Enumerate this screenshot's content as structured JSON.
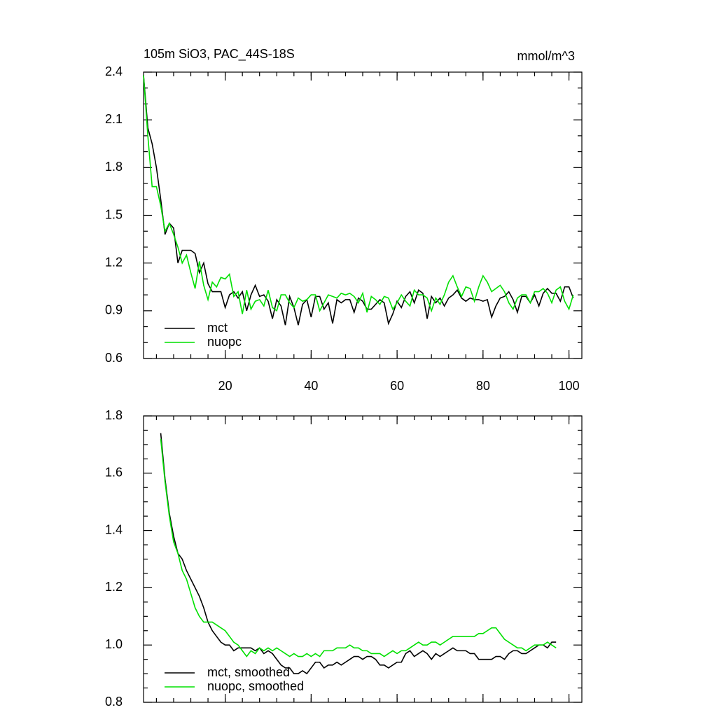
{
  "chart_data": [
    {
      "type": "line",
      "title": "105m SiO3, PAC_44S-18S",
      "right_title": "mmol/m^3",
      "x": [
        1,
        2,
        3,
        4,
        5,
        6,
        7,
        8,
        9,
        10,
        11,
        12,
        13,
        14,
        15,
        16,
        17,
        18,
        19,
        20,
        21,
        22,
        23,
        24,
        25,
        26,
        27,
        28,
        29,
        30,
        31,
        32,
        33,
        34,
        35,
        36,
        37,
        38,
        39,
        40,
        41,
        42,
        43,
        44,
        45,
        46,
        47,
        48,
        49,
        50,
        51,
        52,
        53,
        54,
        55,
        56,
        57,
        58,
        59,
        60,
        61,
        62,
        63,
        64,
        65,
        66,
        67,
        68,
        69,
        70,
        71,
        72,
        73,
        74,
        75,
        76,
        77,
        78,
        79,
        80,
        81,
        82,
        83,
        84,
        85,
        86,
        87,
        88,
        89,
        90,
        91,
        92,
        93,
        94,
        95,
        96,
        97,
        98,
        99,
        100,
        101
      ],
      "series": [
        {
          "name": "mct",
          "color": "#000000",
          "values": [
            2.38,
            2.05,
            1.95,
            1.8,
            1.6,
            1.38,
            1.45,
            1.42,
            1.2,
            1.28,
            1.28,
            1.28,
            1.26,
            1.14,
            1.2,
            1.07,
            1.02,
            1.02,
            1.02,
            0.92,
            1.0,
            1.02,
            0.98,
            1.02,
            0.9,
            1.0,
            1.06,
            0.99,
            1.0,
            0.96,
            0.85,
            0.97,
            0.93,
            0.81,
            0.99,
            0.92,
            0.81,
            0.94,
            0.97,
            0.86,
            0.99,
            0.99,
            0.91,
            0.95,
            0.82,
            0.97,
            0.95,
            0.97,
            0.97,
            0.89,
            0.98,
            0.96,
            0.91,
            0.91,
            0.94,
            0.97,
            0.95,
            0.82,
            0.88,
            0.96,
            0.92,
            0.99,
            1.02,
            0.95,
            1.03,
            1.01,
            0.85,
            0.99,
            0.95,
            0.98,
            0.93,
            0.98,
            1.0,
            1.03,
            0.98,
            0.96,
            0.98,
            0.97,
            0.97,
            0.96,
            0.97,
            0.86,
            0.93,
            0.98,
            0.99,
            1.02,
            0.97,
            0.89,
            0.99,
            0.99,
            0.95,
            1.0,
            0.93,
            1.01,
            1.04,
            1.01,
            1.01,
            0.96,
            1.05,
            1.05,
            0.98
          ]
        },
        {
          "name": "nuopc",
          "color": "#00e000",
          "values": [
            2.38,
            2.0,
            1.68,
            1.68,
            1.56,
            1.4,
            1.45,
            1.38,
            1.3,
            1.2,
            1.25,
            1.14,
            1.04,
            1.21,
            1.06,
            0.97,
            1.08,
            1.05,
            1.11,
            1.1,
            1.13,
            0.99,
            1.02,
            0.88,
            1.03,
            0.91,
            0.96,
            0.97,
            0.93,
            1.03,
            0.92,
            0.9,
            1.0,
            1.0,
            0.95,
            0.92,
            0.98,
            0.96,
            0.97,
            1.0,
            1.0,
            0.9,
            0.95,
            1.0,
            0.99,
            0.98,
            1.01,
            1.0,
            1.01,
            0.99,
            0.95,
            1.01,
            0.89,
            0.99,
            0.97,
            0.94,
            0.99,
            0.98,
            0.91,
            0.95,
            1.0,
            0.96,
            0.93,
            1.03,
            1.0,
            1.0,
            0.98,
            0.9,
            0.98,
            0.94,
            1.0,
            1.08,
            1.12,
            1.05,
            0.99,
            1.05,
            1.04,
            0.96,
            1.05,
            1.12,
            1.08,
            1.02,
            1.04,
            1.06,
            1.02,
            0.95,
            0.91,
            0.98,
            1.0,
            1.0,
            0.95,
            1.02,
            1.02,
            1.04,
            1.01,
            0.95,
            1.03,
            1.05,
            0.96,
            0.91,
            1.0
          ]
        }
      ],
      "xlim": [
        1,
        103
      ],
      "xticks": [
        20,
        40,
        60,
        80,
        100
      ],
      "show_xtick_labels": true,
      "ylim": [
        0.6,
        2.4
      ],
      "yticks": [
        0.6,
        0.9,
        1.2,
        1.5,
        1.8,
        2.1,
        2.4
      ]
    },
    {
      "type": "line",
      "x": [
        5,
        6,
        7,
        8,
        9,
        10,
        11,
        12,
        13,
        14,
        15,
        16,
        17,
        18,
        19,
        20,
        21,
        22,
        23,
        24,
        25,
        26,
        27,
        28,
        29,
        30,
        31,
        32,
        33,
        34,
        35,
        36,
        37,
        38,
        39,
        40,
        41,
        42,
        43,
        44,
        45,
        46,
        47,
        48,
        49,
        50,
        51,
        52,
        53,
        54,
        55,
        56,
        57,
        58,
        59,
        60,
        61,
        62,
        63,
        64,
        65,
        66,
        67,
        68,
        69,
        70,
        71,
        72,
        73,
        74,
        75,
        76,
        77,
        78,
        79,
        80,
        81,
        82,
        83,
        84,
        85,
        86,
        87,
        88,
        89,
        90,
        91,
        92,
        93,
        94,
        95,
        96,
        97
      ],
      "series": [
        {
          "name": "mct, smoothed",
          "color": "#000000",
          "values": [
            1.74,
            1.58,
            1.46,
            1.38,
            1.32,
            1.3,
            1.26,
            1.23,
            1.2,
            1.17,
            1.13,
            1.08,
            1.05,
            1.03,
            1.01,
            1.0,
            1.0,
            0.98,
            0.99,
            0.99,
            0.99,
            0.99,
            0.98,
            0.99,
            0.97,
            0.98,
            0.97,
            0.95,
            0.93,
            0.92,
            0.92,
            0.9,
            0.9,
            0.91,
            0.9,
            0.92,
            0.94,
            0.94,
            0.92,
            0.93,
            0.93,
            0.94,
            0.93,
            0.94,
            0.95,
            0.96,
            0.96,
            0.95,
            0.96,
            0.96,
            0.95,
            0.93,
            0.93,
            0.92,
            0.93,
            0.94,
            0.94,
            0.97,
            0.98,
            0.96,
            0.97,
            0.98,
            0.97,
            0.95,
            0.97,
            0.96,
            0.97,
            0.98,
            0.99,
            0.98,
            0.98,
            0.98,
            0.97,
            0.97,
            0.95,
            0.95,
            0.95,
            0.95,
            0.96,
            0.96,
            0.95,
            0.97,
            0.98,
            0.98,
            0.97,
            0.97,
            0.98,
            0.99,
            1.0,
            1.0,
            0.99,
            1.01,
            1.01
          ]
        },
        {
          "name": "nuopc, smoothed",
          "color": "#00e000",
          "values": [
            1.72,
            1.57,
            1.45,
            1.36,
            1.32,
            1.26,
            1.23,
            1.18,
            1.13,
            1.1,
            1.08,
            1.08,
            1.08,
            1.07,
            1.06,
            1.05,
            1.03,
            1.01,
            1.0,
            0.98,
            0.96,
            0.98,
            0.97,
            0.99,
            0.98,
            0.99,
            0.98,
            0.99,
            0.98,
            0.97,
            0.96,
            0.97,
            0.96,
            0.96,
            0.97,
            0.96,
            0.97,
            0.96,
            0.98,
            0.98,
            0.98,
            0.99,
            0.99,
            0.99,
            1.0,
            0.99,
            0.99,
            0.98,
            0.98,
            0.97,
            0.97,
            0.97,
            0.96,
            0.97,
            0.98,
            0.97,
            0.98,
            0.98,
            0.99,
            1.0,
            1.01,
            1.0,
            1.0,
            1.01,
            1.01,
            1.0,
            1.01,
            1.02,
            1.03,
            1.03,
            1.03,
            1.03,
            1.03,
            1.03,
            1.04,
            1.04,
            1.05,
            1.06,
            1.06,
            1.04,
            1.02,
            1.01,
            1.0,
            0.99,
            0.99,
            0.98,
            0.99,
            1.0,
            1.0,
            1.0,
            1.01,
            1.0,
            0.99
          ]
        }
      ],
      "xlim": [
        1,
        103
      ],
      "xticks": [
        20,
        40,
        60,
        80,
        100
      ],
      "show_xtick_labels": false,
      "ylim": [
        0.8,
        1.8
      ],
      "yticks": [
        0.8,
        {
          "value": 1.0,
          "label": "1.0"
        },
        1.2,
        1.4,
        1.6,
        1.8
      ]
    }
  ]
}
